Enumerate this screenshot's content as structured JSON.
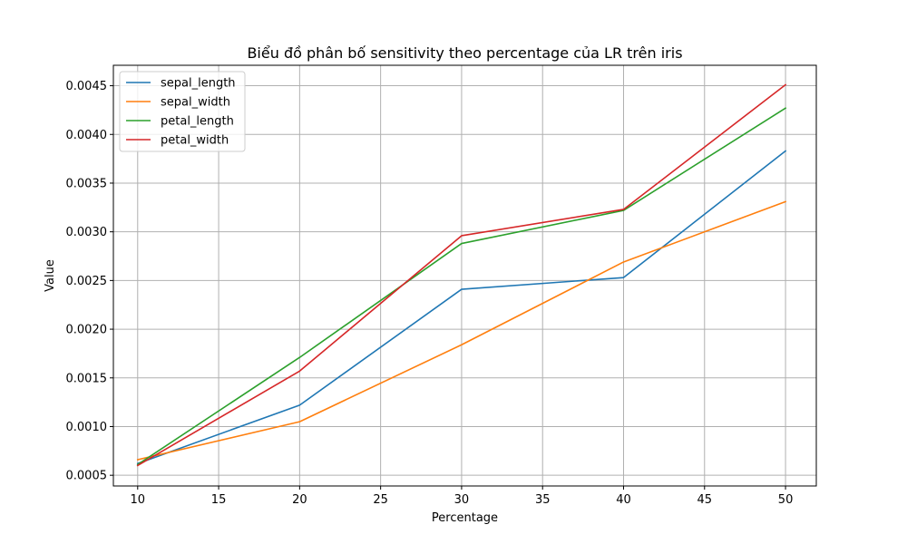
{
  "chart_data": {
    "type": "line",
    "title": "Biểu đồ phân bố sensitivity theo percentage của LR trên iris",
    "xlabel": "Percentage",
    "ylabel": "Value",
    "x": [
      10,
      20,
      30,
      40,
      50
    ],
    "xlim": [
      8.5,
      51.9
    ],
    "ylim": [
      0.00039,
      0.00471
    ],
    "xticks": [
      10,
      15,
      20,
      25,
      30,
      35,
      40,
      45,
      50
    ],
    "yticks": [
      0.0005,
      0.001,
      0.0015,
      0.002,
      0.0025,
      0.003,
      0.0035,
      0.004,
      0.0045
    ],
    "ytick_labels": [
      "0.0005",
      "0.0010",
      "0.0015",
      "0.0020",
      "0.0025",
      "0.0030",
      "0.0035",
      "0.0040",
      "0.0045"
    ],
    "grid": true,
    "legend": "upper left",
    "series": [
      {
        "name": "sepal_length",
        "color": "#1f77b4",
        "values": [
          0.00062,
          0.00122,
          0.00241,
          0.00253,
          0.00383
        ]
      },
      {
        "name": "sepal_width",
        "color": "#ff7f0e",
        "values": [
          0.00066,
          0.00105,
          0.00184,
          0.00269,
          0.00331
        ]
      },
      {
        "name": "petal_length",
        "color": "#2ca02c",
        "values": [
          0.00061,
          0.00171,
          0.00288,
          0.00322,
          0.00427
        ]
      },
      {
        "name": "petal_width",
        "color": "#d62728",
        "values": [
          0.0006,
          0.00157,
          0.00296,
          0.00323,
          0.00451
        ]
      }
    ]
  }
}
